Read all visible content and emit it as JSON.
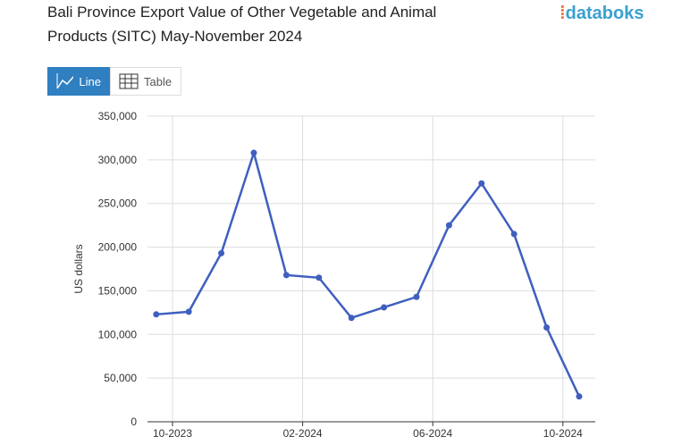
{
  "brand": "databoks",
  "buttons": [
    "Line",
    "Table"
  ],
  "chart_data": {
    "type": "line",
    "title": "Bali Province Export Value of Other Vegetable and Animal",
    "subtitle": "Products (SITC) May-November 2024",
    "ylabel": "US dollars",
    "x": [
      "09-2023",
      "10-2023",
      "11-2023",
      "12-2023",
      "01-2024",
      "02-2024",
      "03-2024",
      "04-2024",
      "05-2024",
      "06-2024",
      "07-2024",
      "08-2024",
      "09-2024",
      "10-2024"
    ],
    "xticks": [
      "10-2023",
      "02-2024",
      "06-2024",
      "10-2024"
    ],
    "series": [
      {
        "name": "US dollars",
        "color": "#3f5fbf",
        "values": [
          123000,
          126000,
          193000,
          308000,
          168000,
          165000,
          119000,
          131000,
          143000,
          225000,
          273000,
          215000,
          108000,
          29000
        ]
      }
    ],
    "ylim": [
      0,
      350000
    ],
    "yticks": [
      0,
      {
        "value": 50000,
        "label": "50,000"
      },
      {
        "value": 100000,
        "label": "100,000"
      },
      {
        "value": 150000,
        "label": "150,000"
      },
      {
        "value": 200000,
        "label": "200,000"
      },
      {
        "value": 250000,
        "label": "250,000"
      },
      {
        "value": 300000,
        "label": "300,000"
      },
      {
        "value": 350000,
        "label": "350,000"
      }
    ],
    "grid": true
  }
}
